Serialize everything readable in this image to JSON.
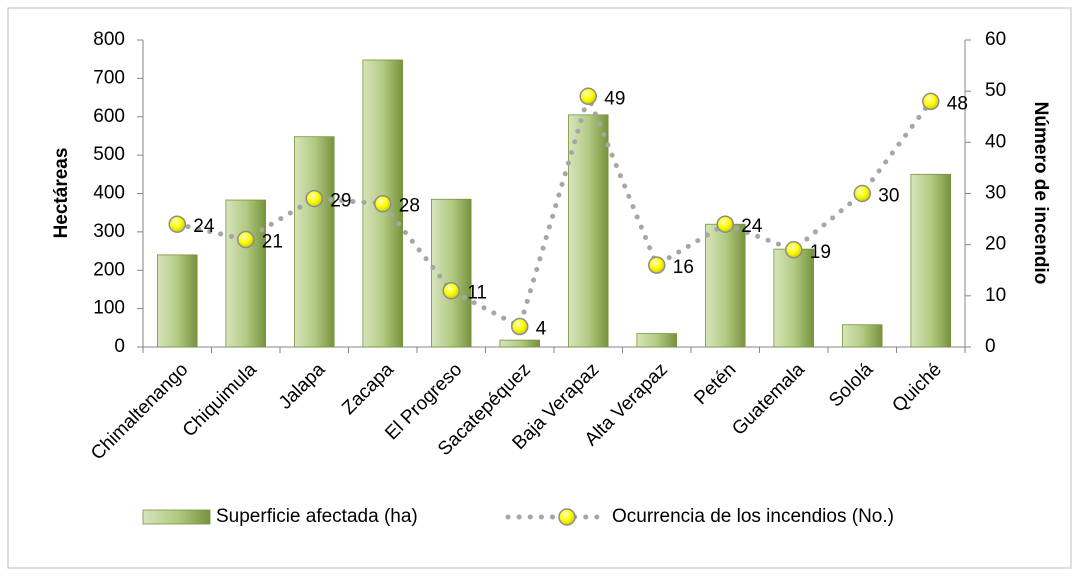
{
  "chart_data": {
    "type": "bar",
    "categories": [
      "Chimaltenango",
      "Chiquimula",
      "Jalapa",
      "Zacapa",
      "El Progreso",
      "Sacatepéquez",
      "Baja Verapaz",
      "Alta Verapaz",
      "Petén",
      "Guatemala",
      "Sololá",
      "Quiché"
    ],
    "series": [
      {
        "name": "Superficie afectada (ha)",
        "color": "#9bbb59",
        "values": [
          240,
          383,
          548,
          748,
          385,
          18,
          605,
          35,
          320,
          255,
          58,
          450
        ]
      },
      {
        "name": "Ocurrencia de los incendios (No.)",
        "type": "line",
        "axis": "y2",
        "color": "#a6a6a6",
        "marker_color": "#ffff00",
        "values": [
          24,
          21,
          29,
          28,
          11,
          4,
          49,
          16,
          24,
          19,
          30,
          48
        ]
      }
    ],
    "ylabel": "Hectáreas",
    "y2label": "Número de incendio",
    "ylim": [
      0,
      800
    ],
    "yticks": [
      0,
      100,
      200,
      300,
      400,
      500,
      600,
      700,
      800
    ],
    "y2lim": [
      0,
      60
    ],
    "y2ticks": [
      0,
      10,
      20,
      30,
      40,
      50,
      60
    ],
    "legend": "bottom"
  }
}
